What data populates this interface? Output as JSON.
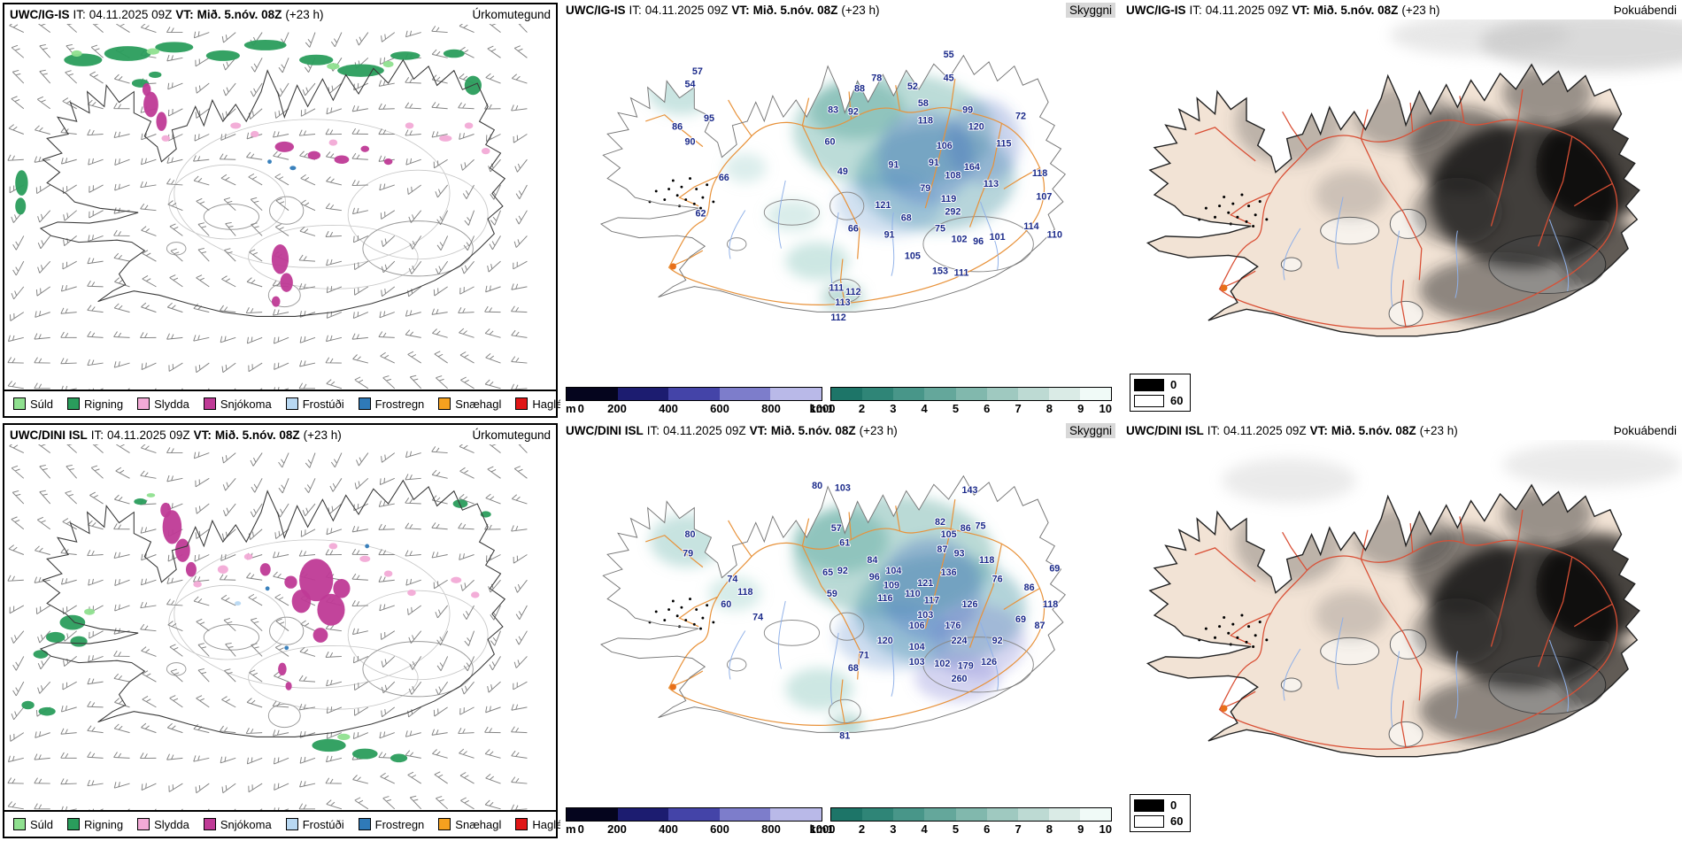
{
  "panels": [
    {
      "model": "UWC/IG-IS",
      "it_label": "IT:",
      "it_value": "04.11.2025 09Z",
      "vt_label": "VT:",
      "vt_value": "Mið. 5.nóv. 08Z",
      "offset": "(+23 h)",
      "product": "Úrkomutegund",
      "type": "precipitation-type"
    },
    {
      "model": "UWC/IG-IS",
      "it_label": "IT:",
      "it_value": "04.11.2025 09Z",
      "vt_label": "VT:",
      "vt_value": "Mið. 5.nóv. 08Z",
      "offset": "(+23 h)",
      "product": "Skyggni",
      "type": "visibility",
      "values": [
        [
          115,
          52,
          "57"
        ],
        [
          108,
          64,
          "54"
        ],
        [
          96,
          104,
          "86"
        ],
        [
          108,
          118,
          "90"
        ],
        [
          126,
          96,
          "95"
        ],
        [
          140,
          152,
          "66"
        ],
        [
          118,
          186,
          "62"
        ],
        [
          243,
          88,
          "83"
        ],
        [
          262,
          90,
          "92"
        ],
        [
          240,
          118,
          "60"
        ],
        [
          252,
          146,
          "49"
        ],
        [
          268,
          68,
          "88"
        ],
        [
          284,
          58,
          "78"
        ],
        [
          318,
          66,
          "52"
        ],
        [
          328,
          82,
          "58"
        ],
        [
          330,
          98,
          "118"
        ],
        [
          352,
          36,
          "55"
        ],
        [
          370,
          88,
          "99"
        ],
        [
          378,
          104,
          "120"
        ],
        [
          352,
          58,
          "45"
        ],
        [
          420,
          94,
          "72"
        ],
        [
          300,
          140,
          "91"
        ],
        [
          348,
          122,
          "106"
        ],
        [
          338,
          138,
          "91"
        ],
        [
          356,
          150,
          "108"
        ],
        [
          374,
          142,
          "164"
        ],
        [
          404,
          120,
          "115"
        ],
        [
          442,
          170,
          "107"
        ],
        [
          330,
          162,
          "79"
        ],
        [
          352,
          172,
          "119"
        ],
        [
          392,
          158,
          "113"
        ],
        [
          438,
          148,
          "118"
        ],
        [
          290,
          178,
          "121"
        ],
        [
          312,
          190,
          "68"
        ],
        [
          356,
          184,
          "292"
        ],
        [
          262,
          200,
          "66"
        ],
        [
          296,
          206,
          "91"
        ],
        [
          344,
          200,
          "75"
        ],
        [
          362,
          210,
          "102"
        ],
        [
          380,
          212,
          "96"
        ],
        [
          398,
          208,
          "101"
        ],
        [
          430,
          198,
          "114"
        ],
        [
          452,
          206,
          "110"
        ],
        [
          318,
          226,
          "105"
        ],
        [
          344,
          240,
          "153"
        ],
        [
          364,
          242,
          "111"
        ],
        [
          246,
          256,
          "111"
        ],
        [
          262,
          260,
          "112"
        ],
        [
          252,
          270,
          "113"
        ],
        [
          248,
          284,
          "112"
        ]
      ]
    },
    {
      "model": "UWC/IG-IS",
      "it_label": "IT:",
      "it_value": "04.11.2025 09Z",
      "vt_label": "VT:",
      "vt_value": "Mið. 5.nóv. 08Z",
      "offset": "(+23 h)",
      "product": "Þokuábendi",
      "type": "fog-indicator"
    },
    {
      "model": "UWC/DINI ISL",
      "it_label": "IT:",
      "it_value": "04.11.2025 09Z",
      "vt_label": "VT:",
      "vt_value": "Mið. 5.nóv. 08Z",
      "offset": "(+23 h)",
      "product": "Úrkomutegund",
      "type": "precipitation-type"
    },
    {
      "model": "UWC/DINI ISL",
      "it_label": "IT:",
      "it_value": "04.11.2025 09Z",
      "vt_label": "VT:",
      "vt_value": "Mið. 5.nóv. 08Z",
      "offset": "(+23 h)",
      "product": "Skyggni",
      "type": "visibility",
      "values": [
        [
          228,
          46,
          "80"
        ],
        [
          252,
          48,
          "103"
        ],
        [
          246,
          86,
          "57"
        ],
        [
          254,
          100,
          "61"
        ],
        [
          108,
          92,
          "80"
        ],
        [
          106,
          110,
          "79"
        ],
        [
          148,
          134,
          "74"
        ],
        [
          160,
          146,
          "118"
        ],
        [
          142,
          158,
          "60"
        ],
        [
          172,
          170,
          "74"
        ],
        [
          238,
          128,
          "65"
        ],
        [
          252,
          126,
          "92"
        ],
        [
          242,
          148,
          "59"
        ],
        [
          280,
          116,
          "84"
        ],
        [
          282,
          132,
          "96"
        ],
        [
          300,
          126,
          "104"
        ],
        [
          298,
          140,
          "109"
        ],
        [
          292,
          152,
          "116"
        ],
        [
          318,
          148,
          "110"
        ],
        [
          330,
          138,
          "121"
        ],
        [
          336,
          154,
          "117"
        ],
        [
          372,
          50,
          "143"
        ],
        [
          344,
          80,
          "82"
        ],
        [
          352,
          92,
          "105"
        ],
        [
          368,
          86,
          "86"
        ],
        [
          382,
          84,
          "75"
        ],
        [
          346,
          106,
          "87"
        ],
        [
          362,
          110,
          "93"
        ],
        [
          388,
          116,
          "118"
        ],
        [
          352,
          128,
          "136"
        ],
        [
          398,
          134,
          "76"
        ],
        [
          452,
          124,
          "69"
        ],
        [
          428,
          142,
          "86"
        ],
        [
          372,
          158,
          "126"
        ],
        [
          330,
          168,
          "103"
        ],
        [
          448,
          158,
          "118"
        ],
        [
          322,
          178,
          "106"
        ],
        [
          356,
          178,
          "176"
        ],
        [
          420,
          172,
          "69"
        ],
        [
          438,
          178,
          "87"
        ],
        [
          292,
          192,
          "120"
        ],
        [
          322,
          198,
          "104"
        ],
        [
          362,
          192,
          "224"
        ],
        [
          398,
          192,
          "92"
        ],
        [
          272,
          206,
          "71"
        ],
        [
          262,
          218,
          "68"
        ],
        [
          322,
          212,
          "103"
        ],
        [
          346,
          214,
          "102"
        ],
        [
          368,
          216,
          "179"
        ],
        [
          390,
          212,
          "126"
        ],
        [
          362,
          228,
          "260"
        ],
        [
          254,
          282,
          "81"
        ]
      ]
    },
    {
      "model": "UWC/DINI ISL",
      "it_label": "IT:",
      "it_value": "04.11.2025 09Z",
      "vt_label": "VT:",
      "vt_value": "Mið. 5.nóv. 08Z",
      "offset": "(+23 h)",
      "product": "Þokuábendi",
      "type": "fog-indicator"
    }
  ],
  "precip_legend": [
    {
      "label": "Súld",
      "color": "#8fe08f"
    },
    {
      "label": "Rigning",
      "color": "#2a9d5c"
    },
    {
      "label": "Slydda",
      "color": "#f2aad6"
    },
    {
      "label": "Snjókoma",
      "color": "#bf3a96"
    },
    {
      "label": "Frostúði",
      "color": "#b8d8f2"
    },
    {
      "label": "Frostregn",
      "color": "#2f7ab8"
    },
    {
      "label": "Snæhagl",
      "color": "#f5a11f"
    },
    {
      "label": "Haglél",
      "color": "#e01616"
    }
  ],
  "visibility_scale": {
    "m_label": "m",
    "m_ticks": [
      "0",
      "200",
      "400",
      "600",
      "800",
      "1000"
    ],
    "m_colors": [
      "#05051e",
      "#1c1c70",
      "#4444a8",
      "#7d7dcb",
      "#b9b9e8"
    ],
    "km_label": "km",
    "km_ticks": [
      "1",
      "2",
      "3",
      "4",
      "5",
      "6",
      "7",
      "8",
      "9",
      "10"
    ],
    "km_colors": [
      "#1d7568",
      "#2f8577",
      "#489689",
      "#64a79b",
      "#81b8ad",
      "#9fc9c0",
      "#bddad3",
      "#daebe6",
      "#f0faf7"
    ]
  },
  "fog_scale": {
    "low_value": "0",
    "high_value": "60",
    "low_color": "#000000",
    "high_color": "#ffffff"
  },
  "map_colors": {
    "coast": "#333333",
    "wind_barb": "#828282",
    "roads_visibility": "#e8923a",
    "roads_fog": "#d94f35",
    "rivers": "#8fb0e8",
    "land_fog": "#f2e3d5",
    "value_text": "#1b2a8a",
    "glacier_outline": "#888888"
  }
}
